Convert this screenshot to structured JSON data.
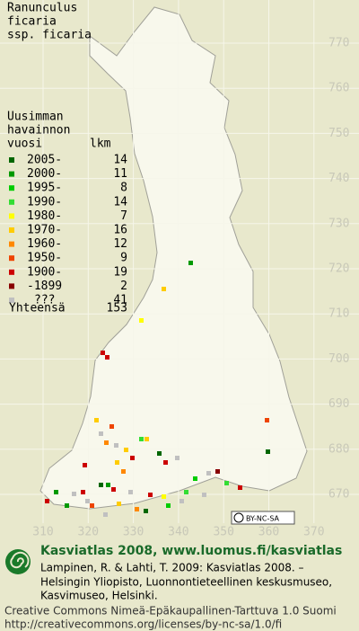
{
  "title": [
    "Ranunculus",
    "ficaria",
    "ssp. ficaria"
  ],
  "legend": {
    "header": [
      "Uusimman",
      "havainnon",
      "vuosi"
    ],
    "count_header": "lkm",
    "rows": [
      {
        "label": "2005-",
        "count": 14,
        "color": "#006600"
      },
      {
        "label": "2000-",
        "count": 11,
        "color": "#009900"
      },
      {
        "label": "1995-",
        "count": 8,
        "color": "#00cc00"
      },
      {
        "label": "1990-",
        "count": 14,
        "color": "#33dd33"
      },
      {
        "label": "1980-",
        "count": 7,
        "color": "#ffff00"
      },
      {
        "label": "1970-",
        "count": 16,
        "color": "#ffcc00"
      },
      {
        "label": "1960-",
        "count": 12,
        "color": "#ff8800"
      },
      {
        "label": "1950-",
        "count": 9,
        "color": "#ee4400"
      },
      {
        "label": "1900-",
        "count": 19,
        "color": "#cc0000"
      },
      {
        "label": "-1899",
        "count": 2,
        "color": "#880000"
      },
      {
        "label": "???",
        "count": 41,
        "color": "#c0c0c0"
      }
    ],
    "total_label": "Yhteensä",
    "total": 153
  },
  "grid": {
    "north": [
      770,
      760,
      750,
      740,
      730,
      720,
      710,
      700,
      690,
      680,
      670
    ],
    "east": [
      310,
      320,
      330,
      340,
      350,
      360,
      370
    ]
  },
  "license_badge": "BY-NC-SA",
  "footer": {
    "heading": "Kasviatlas 2008, www.luomus.fi/kasviatlas",
    "citation": [
      "Lampinen, R. & Lahti, T. 2009: Kasviatlas 2008. –",
      "Helsingin Yliopisto, Luonnontieteellinen keskusmuseo,",
      "Kasvimuseo, Helsinki."
    ],
    "license": [
      "Creative Commons Nimeä-Epäkaupallinen-Tarttuva 1.0 Suomi",
      "http://creativecommons.org/licenses/by-nc-sa/1.0/fi"
    ]
  }
}
